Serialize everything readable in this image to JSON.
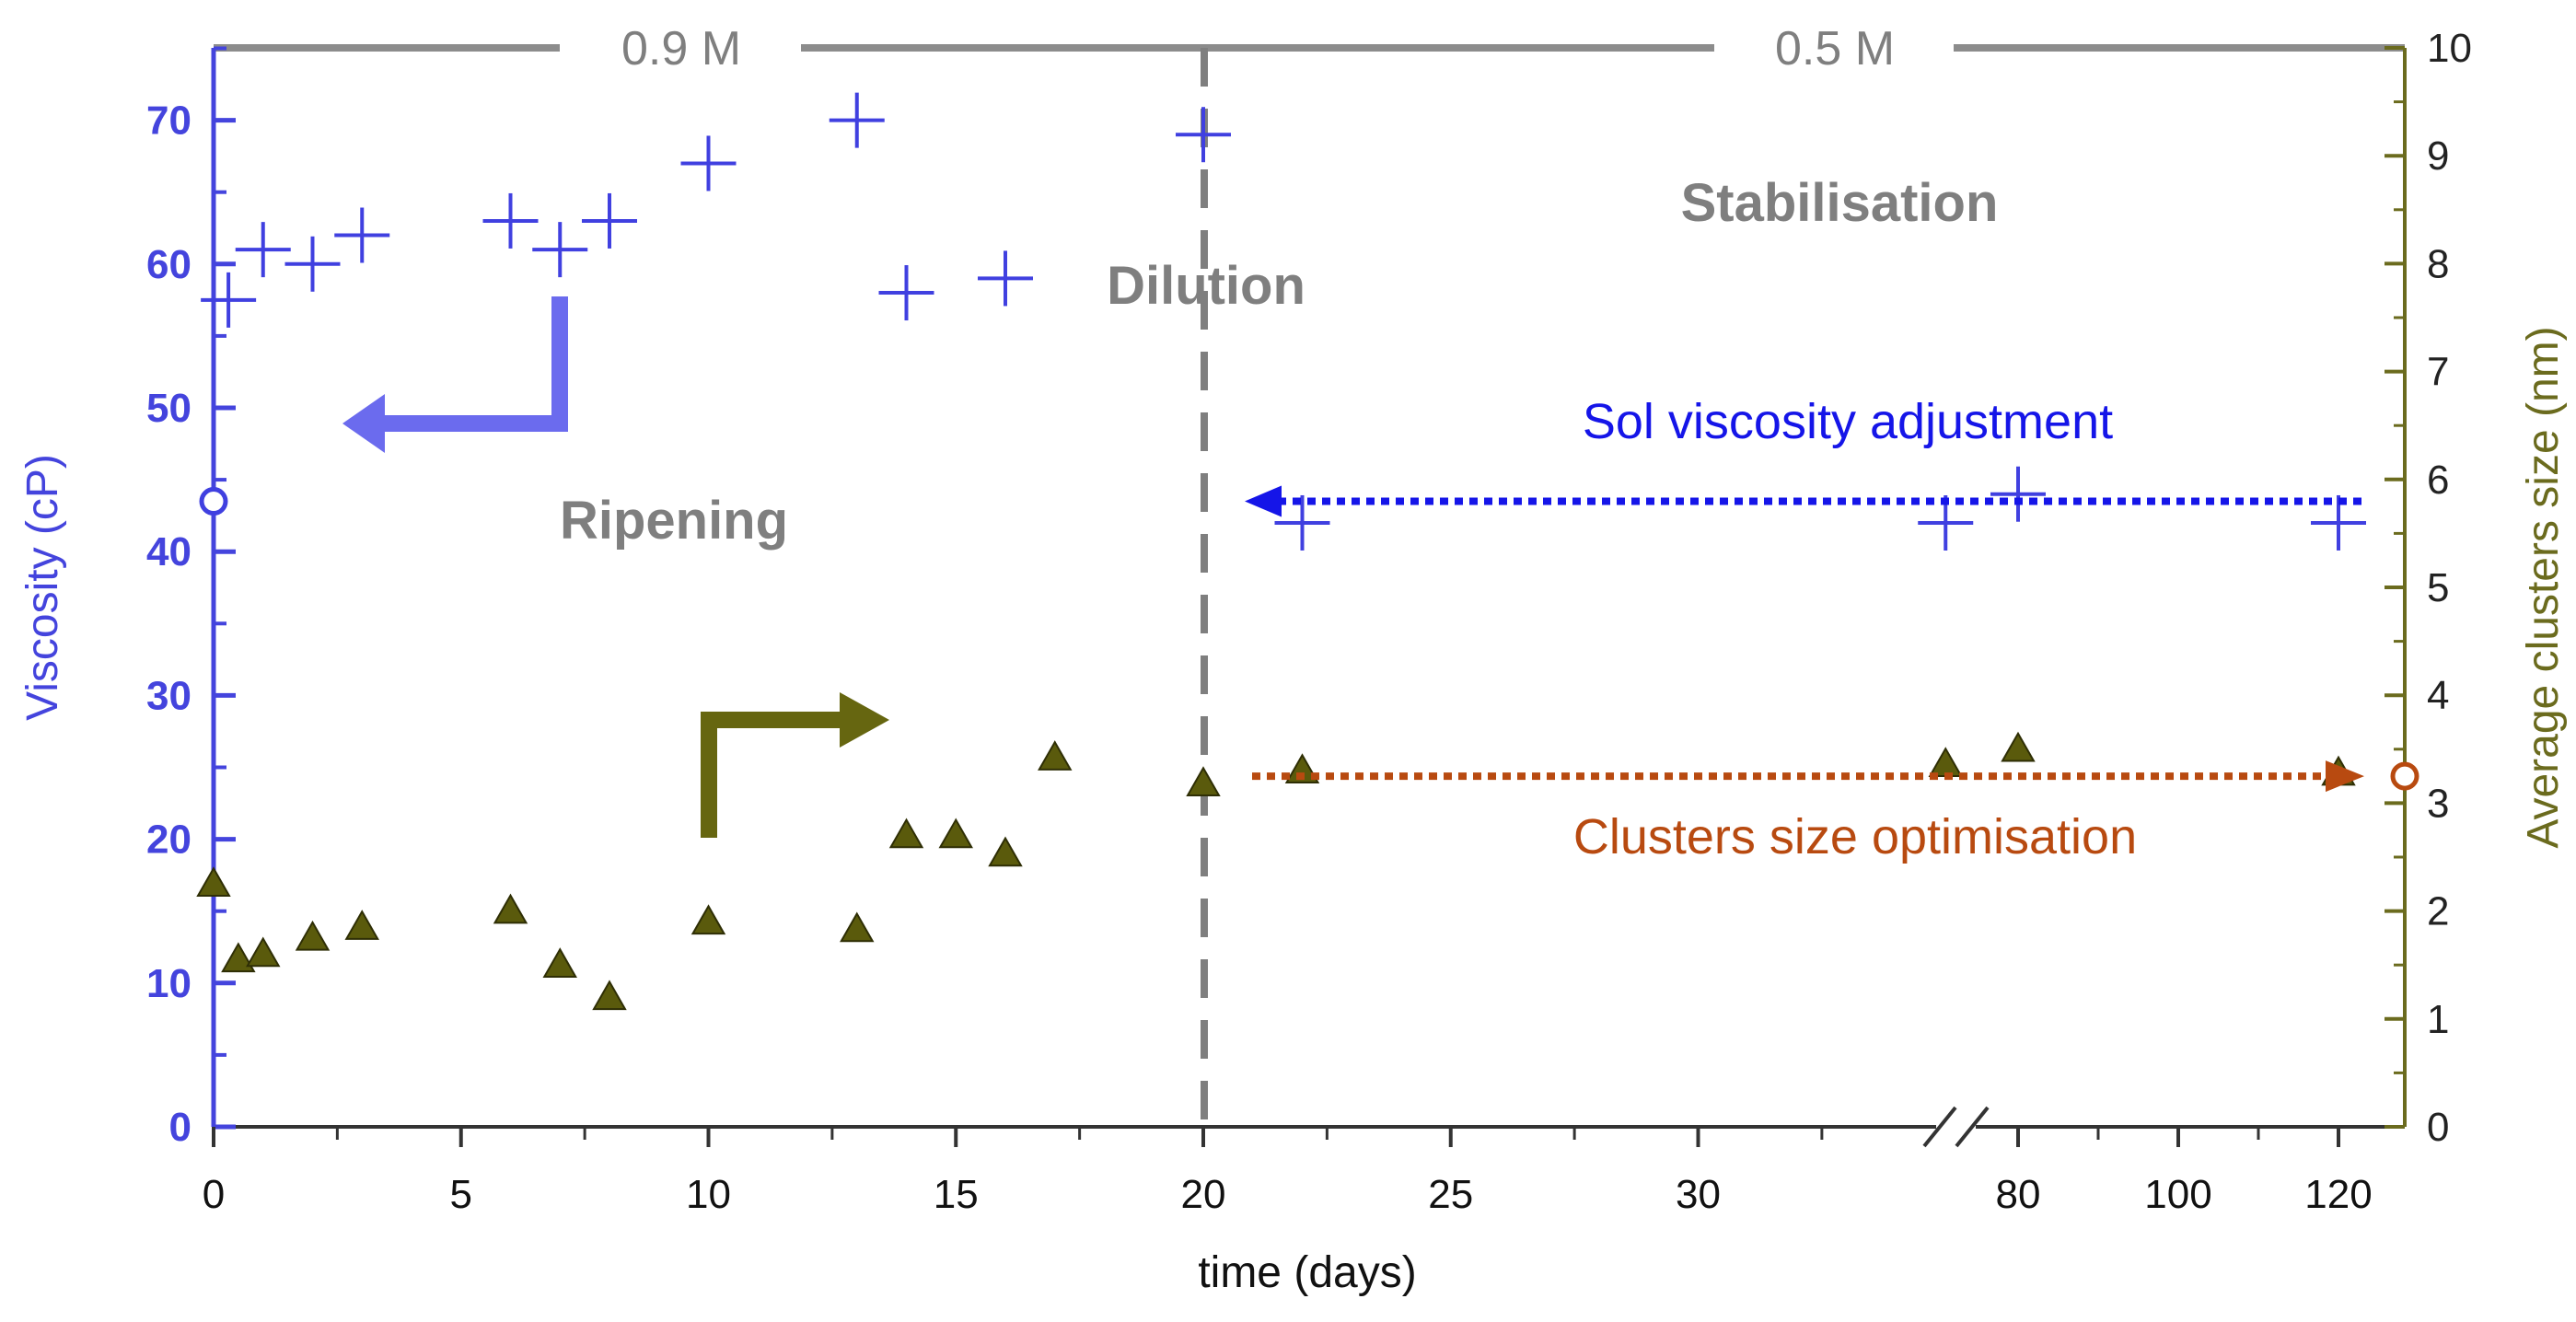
{
  "colors": {
    "viscosity": "#4040e0",
    "viscosity_axis": "#4444dd",
    "cluster": "#5a5a0c",
    "cluster_axis": "#6b6b1e",
    "adjustment": "#1515e8",
    "optimisation": "#b84a10",
    "gray": "#7f7f7f",
    "arrow_blue": "#6b6bee",
    "arrow_olive": "#666610"
  },
  "chart_data": {
    "type": "scatter",
    "xlabel": "time (days)",
    "ylabel_left": "Viscosity (cP)",
    "ylabel_right": "Average clusters size (nm)",
    "ylim_left": [
      0,
      75
    ],
    "ylim_right": [
      0,
      10
    ],
    "x_ticks_linear": [
      "0",
      "5",
      "10",
      "15",
      "20",
      "25",
      "30"
    ],
    "x_ticks_broken": [
      "80",
      "100",
      "120"
    ],
    "y_ticks_left": [
      "0",
      "10",
      "20",
      "30",
      "40",
      "50",
      "60",
      "70"
    ],
    "y_ticks_right": [
      "0",
      "1",
      "2",
      "3",
      "4",
      "5",
      "6",
      "7",
      "8",
      "9",
      "10"
    ],
    "series": [
      {
        "name": "Viscosity",
        "axis": "left",
        "marker": "plus",
        "points": [
          {
            "x": 0.3,
            "y": 57.5
          },
          {
            "x": 1,
            "y": 61
          },
          {
            "x": 2,
            "y": 60
          },
          {
            "x": 3,
            "y": 62
          },
          {
            "x": 6,
            "y": 63
          },
          {
            "x": 7,
            "y": 61
          },
          {
            "x": 8,
            "y": 63
          },
          {
            "x": 10,
            "y": 67
          },
          {
            "x": 13,
            "y": 70
          },
          {
            "x": 14,
            "y": 58
          },
          {
            "x": 16,
            "y": 59
          },
          {
            "x": 20,
            "y": 69
          },
          {
            "x": 22,
            "y": 42
          },
          {
            "x": 35,
            "y": 42
          },
          {
            "x": 80,
            "y": 44
          },
          {
            "x": 120,
            "y": 42
          }
        ]
      },
      {
        "name": "Average clusters size",
        "axis": "right",
        "marker": "triangle",
        "points": [
          {
            "x": 0,
            "y": 2.25
          },
          {
            "x": 0.5,
            "y": 1.55
          },
          {
            "x": 1,
            "y": 1.6
          },
          {
            "x": 2,
            "y": 1.75
          },
          {
            "x": 3,
            "y": 1.85
          },
          {
            "x": 6,
            "y": 2.0
          },
          {
            "x": 7,
            "y": 1.5
          },
          {
            "x": 8,
            "y": 1.2
          },
          {
            "x": 10,
            "y": 1.9
          },
          {
            "x": 13,
            "y": 1.83
          },
          {
            "x": 14,
            "y": 2.7
          },
          {
            "x": 15,
            "y": 2.7
          },
          {
            "x": 16,
            "y": 2.53
          },
          {
            "x": 17,
            "y": 3.42
          },
          {
            "x": 20,
            "y": 3.18
          },
          {
            "x": 22,
            "y": 3.3
          },
          {
            "x": 35,
            "y": 3.36
          },
          {
            "x": 80,
            "y": 3.5
          },
          {
            "x": 120,
            "y": 3.28
          }
        ]
      }
    ],
    "concentration_labels": [
      "0.9 M",
      "0.5 M"
    ],
    "dilution_day": 20,
    "phase_labels": {
      "ripening": "Ripening",
      "dilution": "Dilution",
      "stabilisation": "Stabilisation"
    },
    "annotations": {
      "adjustment": "Sol viscosity adjustment",
      "adjustment_level": 43.5,
      "optimisation": "Clusters size optimisation",
      "optimisation_level": 3.25
    }
  }
}
